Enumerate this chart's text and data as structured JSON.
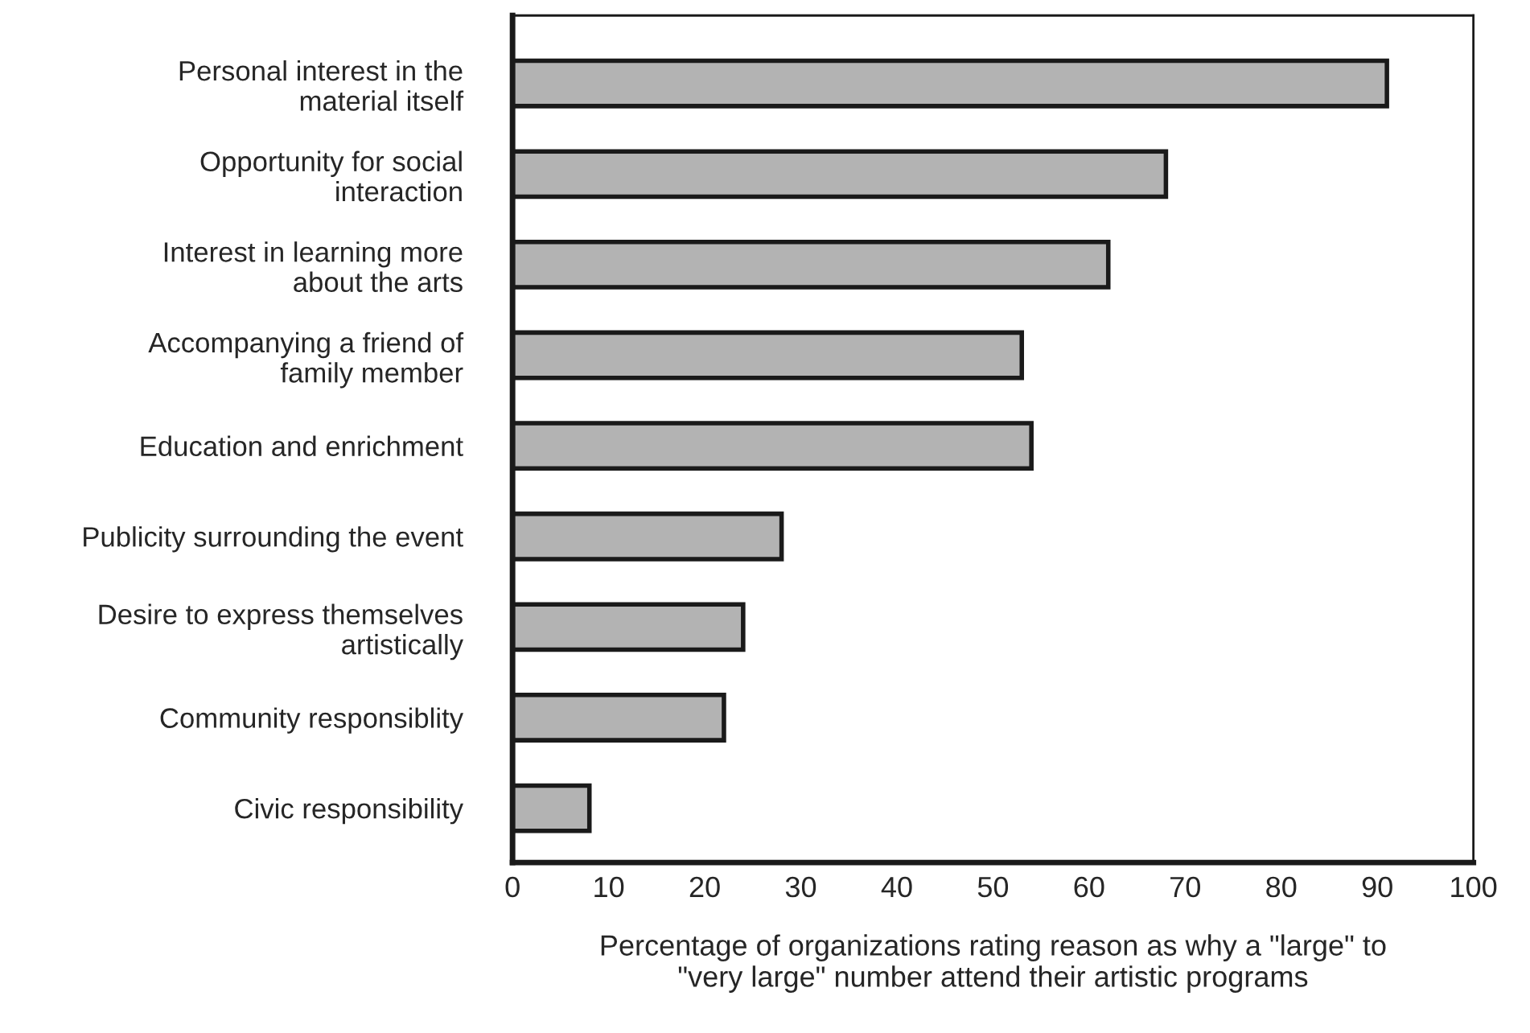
{
  "chart_data": {
    "type": "bar",
    "orientation": "horizontal",
    "xlabel": "Percentage of organizations rating reason as why a \"large\" to\n\"very large\" number attend their artistic programs",
    "categories": [
      "Personal interest in the\nmaterial itself",
      "Opportunity for social\ninteraction",
      "Interest in learning more\nabout the arts",
      "Accompanying a friend of\nfamily member",
      "Education and enrichment",
      "Publicity surrounding the event",
      "Desire to express themselves\nartistically",
      "Community responsiblity",
      "Civic responsibility"
    ],
    "values": [
      91,
      68,
      62,
      53,
      54,
      28,
      24,
      22,
      8
    ],
    "color": "#b3b3b3",
    "xlim": [
      0,
      100
    ],
    "xticks": [
      0,
      10,
      20,
      30,
      40,
      50,
      60,
      70,
      80,
      90,
      100
    ],
    "grid": false,
    "legend": false
  }
}
